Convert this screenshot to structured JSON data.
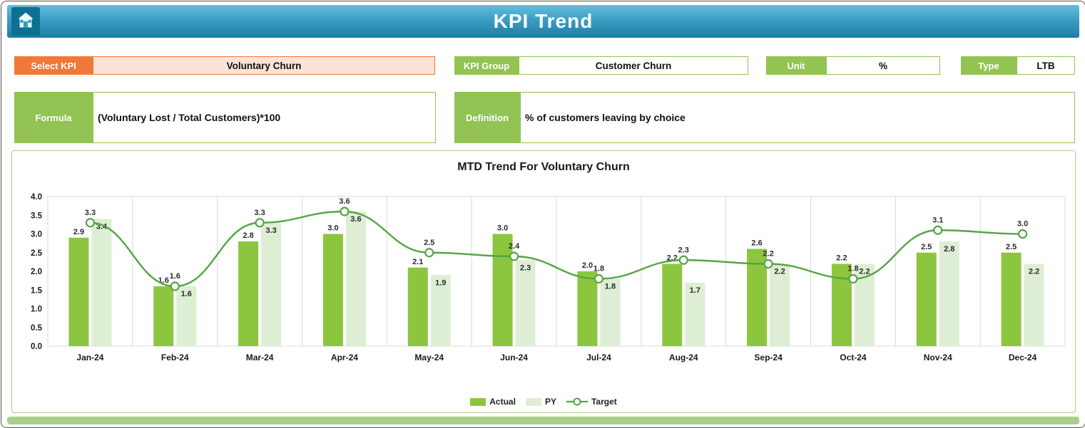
{
  "header": {
    "title": "KPI Trend"
  },
  "controls": {
    "select_kpi": {
      "label": "Select KPI",
      "value": "Voluntary Churn"
    },
    "kpi_group": {
      "label": "KPI Group",
      "value": "Customer Churn"
    },
    "unit": {
      "label": "Unit",
      "value": "%"
    },
    "type": {
      "label": "Type",
      "value": "LTB"
    },
    "formula": {
      "label": "Formula",
      "value": "(Voluntary Lost / Total Customers)*100"
    },
    "definition": {
      "label": "Definition",
      "value": "% of customers leaving by choice"
    }
  },
  "chart_data": {
    "type": "bar",
    "title": "MTD Trend For Voluntary Churn",
    "categories": [
      "Jan-24",
      "Feb-24",
      "Mar-24",
      "Apr-24",
      "May-24",
      "Jun-24",
      "Jul-24",
      "Aug-24",
      "Sep-24",
      "Oct-24",
      "Nov-24",
      "Dec-24"
    ],
    "series": [
      {
        "name": "Actual",
        "type": "bar",
        "color": "#8cc63f",
        "values": [
          2.9,
          1.6,
          2.8,
          3.0,
          2.1,
          3.0,
          2.0,
          2.2,
          2.6,
          2.2,
          2.5,
          2.5
        ]
      },
      {
        "name": "PY",
        "type": "bar",
        "color": "#ddeed4",
        "values": [
          3.4,
          1.6,
          3.3,
          3.6,
          1.9,
          2.3,
          1.8,
          1.7,
          2.2,
          2.2,
          2.8,
          2.2
        ]
      },
      {
        "name": "Target",
        "type": "line",
        "color": "#55a546",
        "values": [
          3.3,
          1.6,
          3.3,
          3.6,
          2.5,
          2.4,
          1.8,
          2.3,
          2.2,
          1.8,
          3.1,
          3.0
        ]
      }
    ],
    "ylim": [
      0,
      4
    ],
    "ytick_step": 0.5,
    "grid": "vertical",
    "legend_position": "bottom"
  },
  "colors": {
    "banner_top": "#63bede",
    "banner_bottom": "#1f7ba3",
    "button_green": "#92c353",
    "button_orange": "#f0793a",
    "field_peach": "#fbe3d5",
    "panel_border": "#a9d18e",
    "bottom_strip": "#a8d08d"
  }
}
